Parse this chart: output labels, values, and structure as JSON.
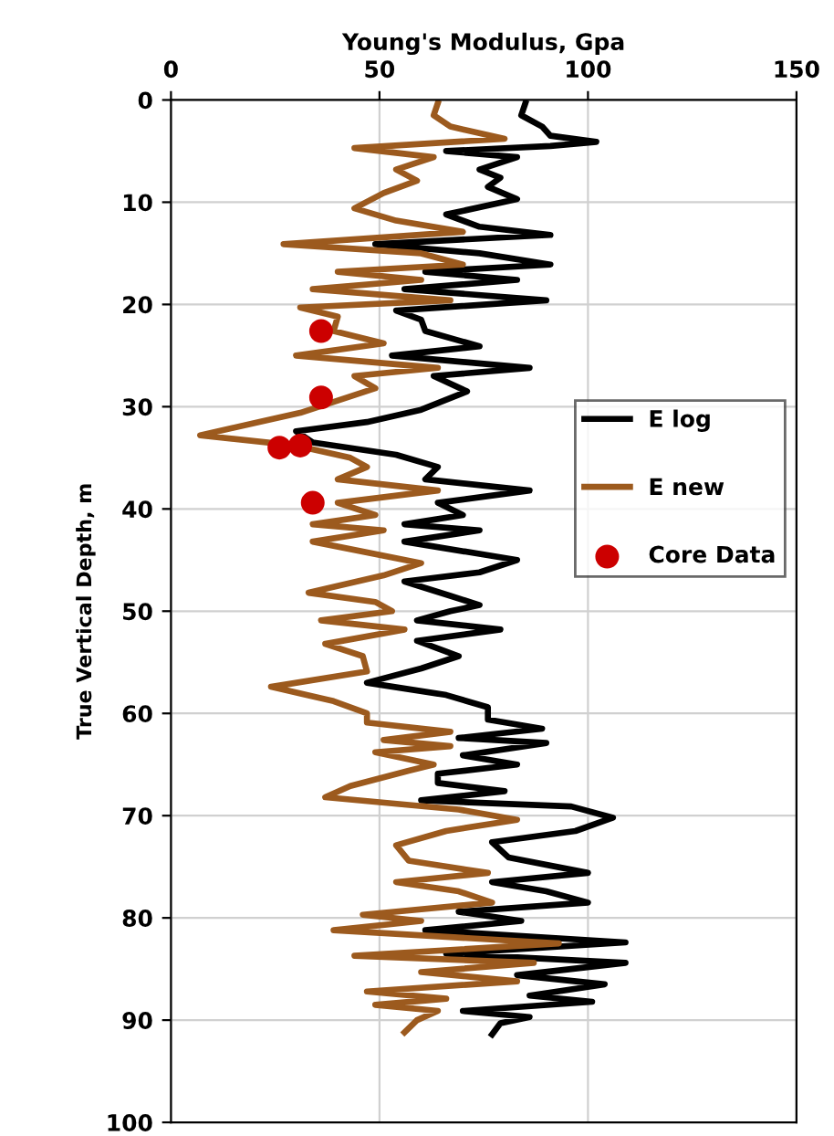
{
  "chart_data": {
    "type": "line",
    "orientation": "horizontal",
    "xlabel": "Young's Modulus, Gpa",
    "ylabel": "True Vertical Depth, m",
    "xlim": [
      0,
      150
    ],
    "xticks": [
      0,
      50,
      100,
      150
    ],
    "ylim": [
      100,
      0
    ],
    "yticks": [
      0,
      10,
      20,
      30,
      40,
      50,
      60,
      70,
      80,
      90,
      100
    ],
    "grid": true,
    "legend": "right",
    "line_style": "solid",
    "series": [
      {
        "name": "E log",
        "color": "#000000",
        "x": [
          0.3,
          1.5,
          2.6,
          3.5,
          4.1,
          4.5,
          5,
          5.6,
          6.8,
          7.6,
          8.5,
          9.7,
          11.2,
          12.4,
          13.2,
          14.1,
          15,
          16.1,
          16.8,
          17.6,
          18.5,
          19.6,
          20.6,
          21.5,
          22.6,
          24.1,
          25,
          26.2,
          27,
          28.5,
          30.3,
          31.5,
          32.4,
          33.5,
          34.7,
          35.9,
          37.1,
          38.2,
          39.4,
          40.6,
          41.5,
          42.1,
          43.2,
          45,
          46.2,
          47.1,
          48.5,
          49.4,
          50,
          50.9,
          51.8,
          52.9,
          54.4,
          55.6,
          57,
          58.2,
          59.4,
          60.6,
          61.5,
          62.4,
          62.9,
          64.1,
          65,
          65.9,
          66.8,
          67.6,
          68.5,
          69.1,
          70.2,
          71.5,
          72.6,
          74.1,
          75.6,
          76.5,
          77.4,
          78.5,
          79.4,
          80.3,
          81.2,
          82.4,
          83.5,
          84.4,
          85.6,
          86.5,
          87.6,
          88.2,
          89.1,
          89.7,
          90.3,
          91.4
        ],
        "values": [
          85,
          84,
          89,
          91,
          102,
          91,
          66,
          83,
          74,
          79,
          76,
          83,
          66,
          74,
          91,
          49,
          74,
          91,
          61,
          83,
          56,
          90,
          54,
          60,
          61,
          74,
          53,
          86,
          63,
          71,
          60,
          47,
          30,
          34,
          54,
          64,
          61,
          86,
          64,
          70,
          56,
          74,
          56,
          83,
          74,
          56,
          67,
          74,
          67,
          59,
          79,
          59,
          69,
          60,
          47,
          66,
          76,
          76,
          89,
          69,
          90,
          70,
          83,
          64,
          64,
          80,
          60,
          96,
          106,
          97,
          77,
          81,
          100,
          77,
          90,
          100,
          69,
          84,
          61,
          109,
          66,
          109,
          83,
          104,
          86,
          101,
          70,
          86,
          79,
          77
        ]
      },
      {
        "name": "E new",
        "color": "#9c5a1e",
        "x": [
          0.3,
          1.5,
          2.6,
          3.8,
          4.7,
          5.6,
          6.8,
          7.9,
          9.1,
          10.6,
          11.8,
          12.9,
          14.1,
          15,
          16.1,
          16.8,
          17.6,
          18.5,
          19.6,
          20.3,
          21.2,
          22.6,
          23.8,
          25,
          26.2,
          27,
          28.2,
          29.4,
          30.6,
          31.5,
          32.8,
          33.8,
          35,
          35.9,
          37.1,
          38.2,
          39.4,
          40.6,
          41.5,
          42.1,
          43.2,
          45.3,
          46.5,
          48.2,
          49.1,
          50,
          50.9,
          51.8,
          53.2,
          54.4,
          55.9,
          57.4,
          58.8,
          60,
          60.9,
          61.8,
          62.6,
          63.2,
          63.8,
          65,
          65.6,
          67.1,
          68.2,
          69.4,
          70.4,
          71.5,
          72.9,
          74.4,
          75.6,
          76.5,
          77.4,
          78.5,
          79.7,
          80.3,
          81.2,
          82.5,
          83.7,
          84.4,
          85.3,
          86.2,
          87.2,
          87.9,
          88.5,
          89.1,
          90,
          91.2
        ],
        "values": [
          64,
          63,
          67,
          80,
          44,
          63,
          54,
          59,
          51,
          44,
          54,
          70,
          27,
          60,
          70,
          40,
          60,
          34,
          67,
          31,
          40,
          39,
          51,
          30,
          64,
          44,
          49,
          40,
          31,
          21,
          7,
          30,
          43,
          47,
          40,
          64,
          40,
          49,
          34,
          51,
          34,
          60,
          51,
          33,
          49,
          53,
          36,
          56,
          37,
          46,
          47,
          24,
          39,
          47,
          47,
          67,
          51,
          67,
          49,
          63,
          57,
          43,
          37,
          69,
          83,
          66,
          54,
          57,
          76,
          54,
          69,
          77,
          46,
          60,
          39,
          93,
          44,
          87,
          60,
          83,
          47,
          66,
          49,
          64,
          59,
          56
        ]
      },
      {
        "name": "Core Data",
        "type": "scatter",
        "color": "#cc0000",
        "marker": "circle",
        "x": [
          22.6,
          29.1,
          33.8,
          34,
          39.4
        ],
        "values": [
          36,
          36,
          31,
          26,
          34
        ]
      }
    ]
  }
}
